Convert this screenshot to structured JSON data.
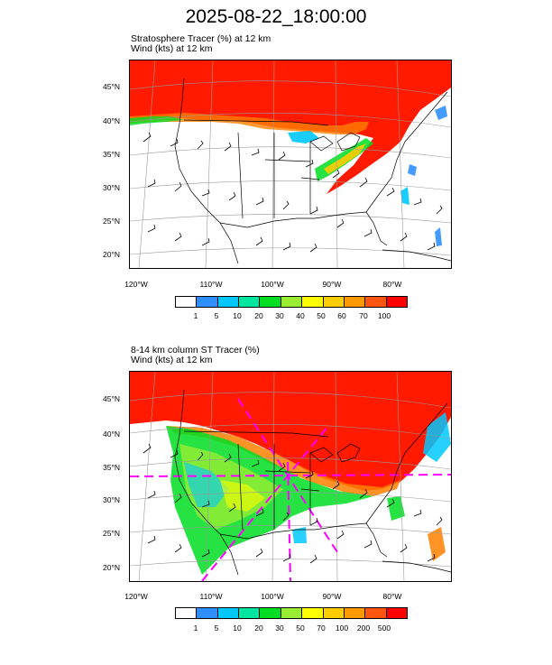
{
  "title": "2025-08-22_18:00:00",
  "panels": [
    {
      "title_line1": "Stratosphere Tracer   (%)    at   12 km",
      "title_line2": "Wind   (kts)    at   12 km",
      "lat_labels": [
        "45°N",
        "40°N",
        "35°N",
        "30°N",
        "25°N",
        "20°N"
      ],
      "lon_labels": [
        "120°W",
        "110°W",
        "100°W",
        "90°W",
        "80°W"
      ],
      "colorbar_labels": [
        "1",
        "5",
        "10",
        "20",
        "30",
        "40",
        "50",
        "60",
        "70",
        "100"
      ]
    },
    {
      "title_line1": "8-14 km column ST Tracer   (%)",
      "title_line2": "Wind   (kts)    at   12 km",
      "lat_labels": [
        "45°N",
        "40°N",
        "35°N",
        "30°N",
        "25°N",
        "20°N"
      ],
      "lon_labels": [
        "120°W",
        "110°W",
        "100°W",
        "90°W",
        "80°W"
      ],
      "colorbar_labels": [
        "1",
        "5",
        "10",
        "20",
        "30",
        "50",
        "70",
        "100",
        "200",
        "500"
      ]
    }
  ],
  "colorbar_colors": [
    "#ffffff",
    "#2f8fff",
    "#00c8ff",
    "#00e6a0",
    "#00dd22",
    "#99ee33",
    "#ffff00",
    "#ffcc00",
    "#ff9900",
    "#ff5511",
    "#ff0000"
  ]
}
